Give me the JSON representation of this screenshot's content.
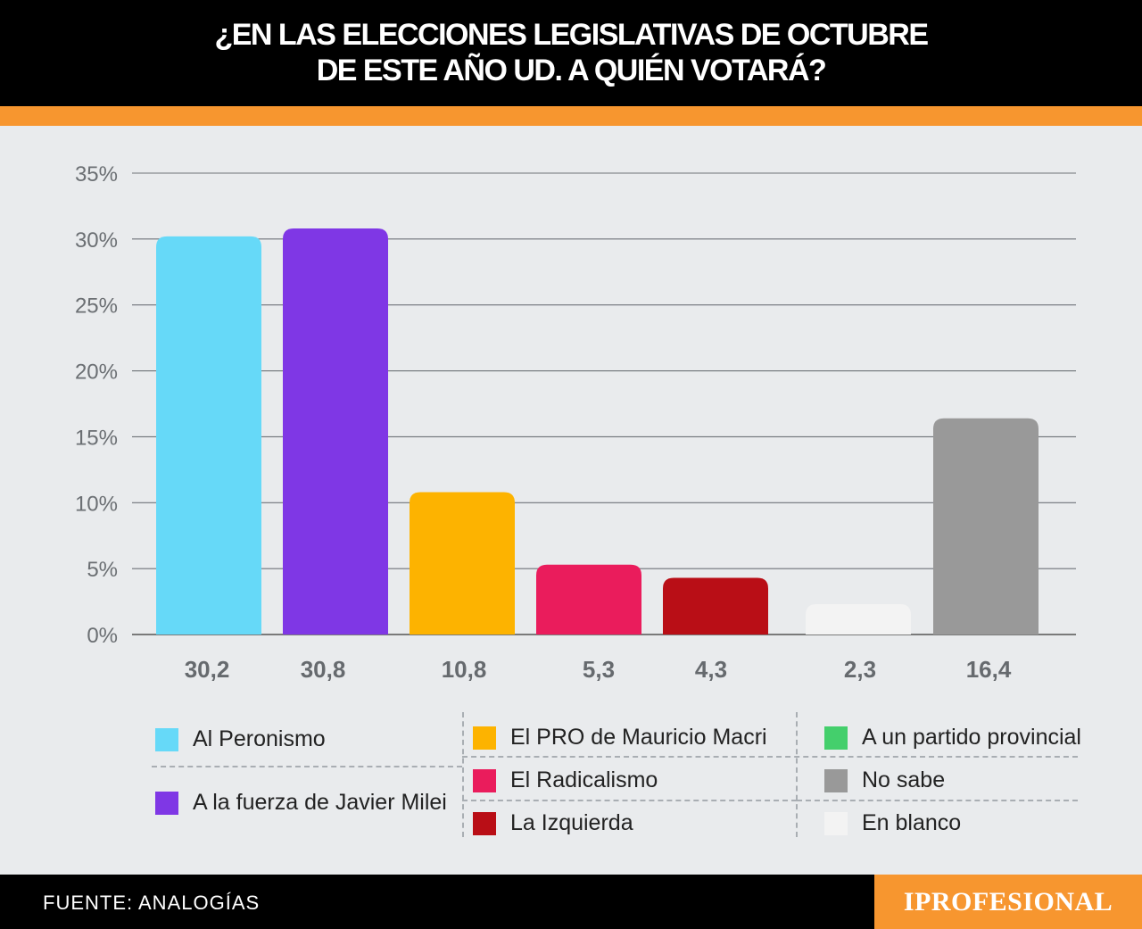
{
  "title": {
    "line1": "¿EN LAS ELECCIONES LEGISLATIVAS DE OCTUBRE",
    "line2": "DE ESTE AÑO UD. A QUIÉN VOTARÁ?"
  },
  "chart_data": {
    "type": "bar",
    "categories": [
      "Al Peronismo",
      "A la fuerza de Javier Milei",
      "El PRO de Mauricio Macri",
      "El Radicalismo",
      "La Izquierda",
      "En blanco",
      "No sabe"
    ],
    "values": [
      30.2,
      30.8,
      10.8,
      5.3,
      4.3,
      2.3,
      16.4
    ],
    "value_labels": [
      "30,2",
      "30,8",
      "10,8",
      "5,3",
      "4,3",
      "2,3",
      "16,4"
    ],
    "colors": [
      "#66d9f8",
      "#7f37e5",
      "#fdb300",
      "#ea1c5c",
      "#b90e16",
      "#f3f3f3",
      "#999999"
    ],
    "yticks": [
      0,
      5,
      10,
      15,
      20,
      25,
      30,
      35
    ],
    "ytick_labels": [
      "0%",
      "5%",
      "10%",
      "15%",
      "20%",
      "25%",
      "30%",
      "35%"
    ],
    "ylim": [
      0,
      35
    ],
    "grid": true,
    "legend_position": "bottom"
  },
  "legend": [
    {
      "label": "Al Peronismo",
      "color": "#66d9f8"
    },
    {
      "label": "A la fuerza de Javier Milei",
      "color": "#7f37e5"
    },
    {
      "label": "El PRO de Mauricio Macri",
      "color": "#fdb300"
    },
    {
      "label": "El Radicalismo",
      "color": "#ea1c5c"
    },
    {
      "label": "La Izquierda",
      "color": "#b90e16"
    },
    {
      "label": "A un partido provincial",
      "color": "#44cf6c"
    },
    {
      "label": "No sabe",
      "color": "#999999"
    },
    {
      "label": "En blanco",
      "color": "#f3f3f3"
    }
  ],
  "footer": {
    "source": "FUENTE: ANALOGÍAS",
    "brand": "IPROFESIONAL"
  }
}
